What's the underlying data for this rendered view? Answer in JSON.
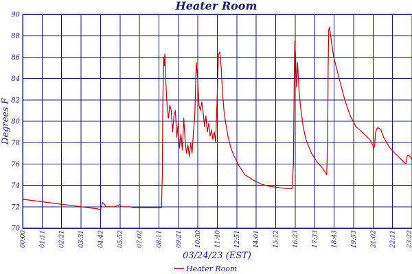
{
  "chart_data": {
    "type": "line",
    "title": "Heater Room",
    "xlabel": "03/24/23 (EST)",
    "ylabel": "Degrees F",
    "ylim": [
      70,
      90
    ],
    "yticks": [
      70,
      72,
      74,
      76,
      78,
      80,
      82,
      84,
      86,
      88,
      90
    ],
    "xticks": [
      "00:00",
      "01:11",
      "02:21",
      "03:31",
      "04:42",
      "05:52",
      "07:02",
      "08:11",
      "09:21",
      "10:30",
      "11:40",
      "12:51",
      "14:01",
      "15:12",
      "16:23",
      "17:33",
      "18:43",
      "19:53",
      "21:02",
      "22:11",
      "23:22"
    ],
    "xlim_minutes": [
      0,
      1402
    ],
    "grid": true,
    "legend": "bottom",
    "colors": {
      "series": "#b00010",
      "grid": "#1a1a6e",
      "text": "#1a1a6e"
    },
    "series": [
      {
        "name": "Heater Room",
        "x_minutes": [
          0,
          30,
          60,
          120,
          180,
          240,
          270,
          280,
          288,
          292,
          300,
          330,
          350,
          355,
          360,
          370,
          385,
          400,
          420,
          450,
          480,
          500,
          503,
          505,
          508,
          510,
          512,
          515,
          518,
          520,
          525,
          530,
          535,
          540,
          545,
          550,
          555,
          560,
          565,
          570,
          575,
          580,
          585,
          590,
          595,
          600,
          605,
          610,
          615,
          620,
          625,
          630,
          635,
          640,
          645,
          650,
          655,
          660,
          665,
          670,
          675,
          680,
          685,
          690,
          695,
          700,
          705,
          710,
          715,
          720,
          725,
          730,
          740,
          750,
          760,
          780,
          800,
          830,
          860,
          890,
          920,
          950,
          970,
          975,
          978,
          980,
          983,
          986,
          990,
          995,
          1000,
          1010,
          1020,
          1040,
          1060,
          1080,
          1090,
          1095,
          1098,
          1100,
          1102,
          1105,
          1110,
          1120,
          1140,
          1160,
          1180,
          1200,
          1230,
          1250,
          1260,
          1265,
          1268,
          1270,
          1275,
          1280,
          1290,
          1300,
          1320,
          1340,
          1360,
          1380,
          1385,
          1390,
          1395,
          1402
        ],
        "values": [
          72.7,
          72.6,
          72.5,
          72.3,
          72.1,
          71.9,
          71.8,
          71.7,
          72.4,
          72.3,
          72.0,
          72.0,
          72.2,
          72.0,
          72.0,
          72.0,
          72.0,
          71.9,
          71.9,
          71.9,
          71.9,
          71.9,
          75.0,
          82.0,
          86.0,
          85.2,
          86.3,
          84.0,
          82.5,
          81.5,
          80.3,
          81.5,
          81.0,
          79.0,
          80.5,
          81.0,
          78.5,
          79.8,
          77.5,
          78.8,
          77.3,
          80.3,
          78.2,
          77.0,
          77.8,
          76.7,
          78.0,
          77.0,
          79.0,
          80.5,
          85.5,
          84.0,
          81.5,
          81.0,
          81.8,
          80.8,
          79.5,
          80.5,
          79.0,
          79.8,
          78.6,
          79.2,
          78.3,
          79.0,
          78.0,
          82.0,
          86.2,
          86.5,
          85.0,
          82.5,
          81.0,
          80.0,
          78.5,
          77.5,
          76.8,
          75.8,
          75.0,
          74.5,
          74.1,
          73.9,
          73.8,
          73.7,
          73.7,
          76.0,
          84.0,
          87.5,
          86.0,
          83.2,
          85.5,
          83.0,
          81.5,
          79.5,
          78.3,
          77.0,
          76.2,
          75.6,
          75.2,
          75.0,
          78.0,
          85.0,
          88.5,
          88.8,
          87.8,
          86.0,
          84.0,
          82.0,
          80.5,
          79.5,
          78.8,
          78.3,
          77.8,
          77.5,
          77.8,
          78.8,
          79.3,
          79.4,
          79.2,
          78.5,
          77.6,
          77.0,
          76.5,
          76.0,
          76.8,
          76.8,
          76.7,
          76.4
        ]
      }
    ]
  }
}
